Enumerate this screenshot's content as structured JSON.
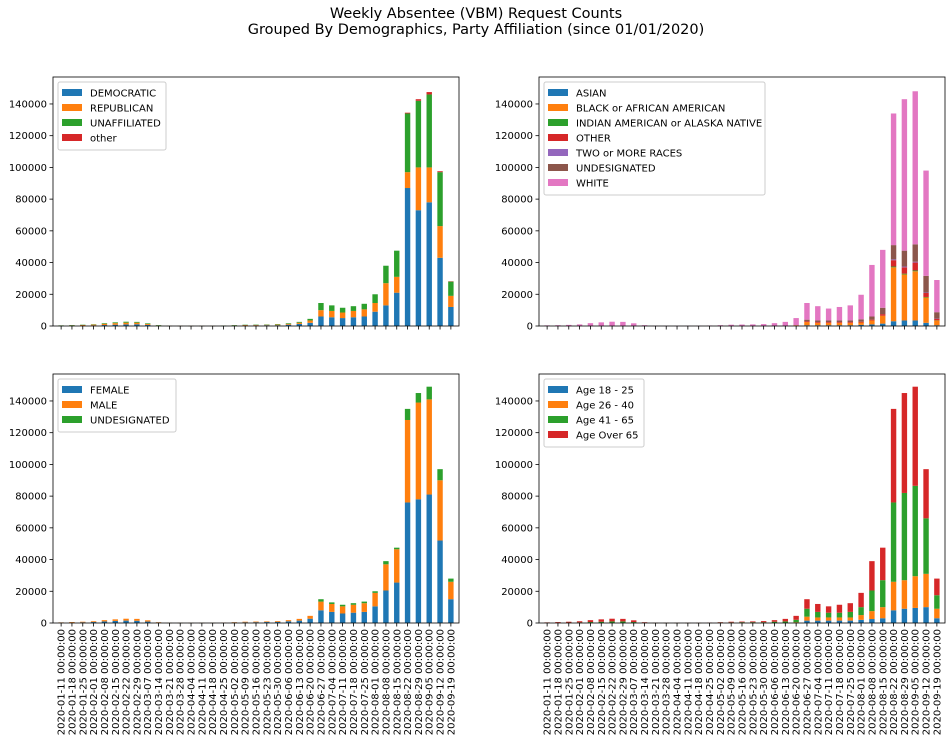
{
  "figure": {
    "title_line1": "Weekly Absentee (VBM) Request Counts",
    "title_line2": "Grouped By Demographics, Party Affiliation (since 01/01/2020)"
  },
  "chart_data": [
    {
      "type": "bar",
      "stacked": true,
      "legend_position": "upper-left",
      "ylim": [
        0,
        157000
      ],
      "yticks": [
        0,
        20000,
        40000,
        60000,
        80000,
        100000,
        120000,
        140000
      ],
      "show_xticklabels": false,
      "categories": [
        "2020-01-11 00:00:00",
        "2020-01-18 00:00:00",
        "2020-01-25 00:00:00",
        "2020-02-01 00:00:00",
        "2020-02-08 00:00:00",
        "2020-02-15 00:00:00",
        "2020-02-22 00:00:00",
        "2020-02-29 00:00:00",
        "2020-03-07 00:00:00",
        "2020-03-14 00:00:00",
        "2020-03-21 00:00:00",
        "2020-03-28 00:00:00",
        "2020-04-04 00:00:00",
        "2020-04-11 00:00:00",
        "2020-04-18 00:00:00",
        "2020-04-25 00:00:00",
        "2020-05-02 00:00:00",
        "2020-05-09 00:00:00",
        "2020-05-16 00:00:00",
        "2020-05-23 00:00:00",
        "2020-05-30 00:00:00",
        "2020-06-06 00:00:00",
        "2020-06-13 00:00:00",
        "2020-06-20 00:00:00",
        "2020-06-27 00:00:00",
        "2020-07-04 00:00:00",
        "2020-07-11 00:00:00",
        "2020-07-18 00:00:00",
        "2020-07-25 00:00:00",
        "2020-08-01 00:00:00",
        "2020-08-08 00:00:00",
        "2020-08-15 00:00:00",
        "2020-08-22 00:00:00",
        "2020-08-29 00:00:00",
        "2020-09-05 00:00:00",
        "2020-09-12 00:00:00",
        "2020-09-19 00:00:00"
      ],
      "series": [
        {
          "name": "DEMOCRATIC",
          "color": "#1f77b4",
          "values": [
            100,
            200,
            300,
            400,
            600,
            800,
            1000,
            1100,
            700,
            200,
            50,
            50,
            50,
            50,
            50,
            50,
            200,
            300,
            400,
            500,
            500,
            800,
            1300,
            2000,
            6000,
            5500,
            5000,
            5500,
            6000,
            9000,
            13000,
            21000,
            87000,
            73000,
            78000,
            43000,
            12000
          ]
        },
        {
          "name": "REPUBLICAN",
          "color": "#ff7f0e",
          "values": [
            200,
            250,
            350,
            500,
            800,
            1000,
            1100,
            1000,
            600,
            200,
            50,
            50,
            50,
            50,
            50,
            100,
            200,
            300,
            300,
            300,
            400,
            600,
            800,
            1500,
            4000,
            4000,
            3500,
            4000,
            4500,
            5500,
            14000,
            10000,
            10000,
            27000,
            22000,
            20000,
            7000
          ]
        },
        {
          "name": "UNAFFILIATED",
          "color": "#2ca02c",
          "values": [
            100,
            150,
            150,
            200,
            400,
            500,
            600,
            500,
            400,
            100,
            0,
            0,
            0,
            0,
            0,
            100,
            100,
            200,
            200,
            200,
            300,
            400,
            500,
            1000,
            4500,
            3500,
            3000,
            3000,
            3500,
            5500,
            11000,
            16500,
            37000,
            42000,
            46000,
            34000,
            9000
          ]
        },
        {
          "name": "other",
          "color": "#d62728",
          "values": [
            0,
            0,
            0,
            0,
            0,
            0,
            0,
            0,
            0,
            0,
            0,
            0,
            0,
            0,
            0,
            0,
            0,
            0,
            0,
            0,
            0,
            0,
            0,
            0,
            0,
            0,
            0,
            0,
            0,
            0,
            0,
            0,
            500,
            1000,
            1500,
            600,
            200
          ]
        }
      ]
    },
    {
      "type": "bar",
      "stacked": true,
      "legend_position": "upper-left",
      "ylim": [
        0,
        157000
      ],
      "yticks": [
        0,
        20000,
        40000,
        60000,
        80000,
        100000,
        120000,
        140000
      ],
      "show_xticklabels": false,
      "categories": [
        "2020-01-11 00:00:00",
        "2020-01-18 00:00:00",
        "2020-01-25 00:00:00",
        "2020-02-01 00:00:00",
        "2020-02-08 00:00:00",
        "2020-02-15 00:00:00",
        "2020-02-22 00:00:00",
        "2020-02-29 00:00:00",
        "2020-03-07 00:00:00",
        "2020-03-14 00:00:00",
        "2020-03-21 00:00:00",
        "2020-03-28 00:00:00",
        "2020-04-04 00:00:00",
        "2020-04-11 00:00:00",
        "2020-04-18 00:00:00",
        "2020-04-25 00:00:00",
        "2020-05-02 00:00:00",
        "2020-05-09 00:00:00",
        "2020-05-16 00:00:00",
        "2020-05-23 00:00:00",
        "2020-05-30 00:00:00",
        "2020-06-06 00:00:00",
        "2020-06-13 00:00:00",
        "2020-06-20 00:00:00",
        "2020-06-27 00:00:00",
        "2020-07-04 00:00:00",
        "2020-07-11 00:00:00",
        "2020-07-18 00:00:00",
        "2020-07-25 00:00:00",
        "2020-08-01 00:00:00",
        "2020-08-08 00:00:00",
        "2020-08-15 00:00:00",
        "2020-08-22 00:00:00",
        "2020-08-29 00:00:00",
        "2020-09-05 00:00:00",
        "2020-09-12 00:00:00",
        "2020-09-19 00:00:00"
      ],
      "series": [
        {
          "name": "ASIAN",
          "color": "#1f77b4",
          "values": [
            0,
            0,
            0,
            0,
            0,
            0,
            0,
            0,
            0,
            0,
            0,
            0,
            0,
            0,
            0,
            0,
            0,
            0,
            0,
            0,
            0,
            0,
            0,
            0,
            500,
            500,
            500,
            500,
            500,
            700,
            1000,
            1500,
            3000,
            3500,
            3500,
            2000,
            500
          ]
        },
        {
          "name": "BLACK or AFRICAN AMERICAN",
          "color": "#ff7f0e",
          "values": [
            0,
            0,
            0,
            0,
            0,
            0,
            0,
            0,
            0,
            0,
            0,
            0,
            0,
            0,
            0,
            0,
            0,
            0,
            0,
            0,
            0,
            0,
            0,
            500,
            2000,
            1500,
            1500,
            1500,
            1500,
            1500,
            2500,
            5000,
            34000,
            29000,
            31000,
            16000,
            3000
          ]
        },
        {
          "name": "INDIAN AMERICAN or ALASKA NATIVE",
          "color": "#2ca02c",
          "values": [
            0,
            0,
            0,
            0,
            0,
            0,
            0,
            0,
            0,
            0,
            0,
            0,
            0,
            0,
            0,
            0,
            0,
            0,
            0,
            0,
            0,
            0,
            0,
            0,
            0,
            0,
            0,
            0,
            0,
            0,
            0,
            0,
            500,
            500,
            500,
            300,
            100
          ]
        },
        {
          "name": "OTHER",
          "color": "#d62728",
          "values": [
            0,
            0,
            0,
            0,
            0,
            0,
            0,
            0,
            0,
            0,
            0,
            0,
            0,
            0,
            0,
            0,
            0,
            0,
            0,
            0,
            0,
            0,
            0,
            0,
            500,
            500,
            500,
            500,
            500,
            500,
            500,
            1000,
            4000,
            4000,
            5000,
            2500,
            1000
          ]
        },
        {
          "name": "TWO or MORE RACES",
          "color": "#9467bd",
          "values": [
            0,
            0,
            0,
            0,
            0,
            0,
            0,
            0,
            0,
            0,
            0,
            0,
            0,
            0,
            0,
            0,
            0,
            0,
            0,
            0,
            0,
            0,
            0,
            0,
            0,
            0,
            0,
            0,
            0,
            0,
            0,
            0,
            500,
            500,
            500,
            300,
            100
          ]
        },
        {
          "name": "UNDESIGNATED",
          "color": "#8c564b",
          "values": [
            0,
            0,
            0,
            0,
            0,
            0,
            0,
            0,
            0,
            0,
            0,
            0,
            0,
            0,
            0,
            0,
            0,
            0,
            0,
            0,
            0,
            0,
            0,
            0,
            1000,
            1000,
            1000,
            1000,
            1000,
            1500,
            2000,
            4000,
            9000,
            10000,
            11000,
            10500,
            4000
          ]
        },
        {
          "name": "WHITE",
          "color": "#e377c2",
          "values": [
            400,
            500,
            700,
            1000,
            1800,
            2300,
            2700,
            2600,
            1700,
            500,
            100,
            100,
            100,
            100,
            100,
            300,
            500,
            800,
            900,
            1000,
            1200,
            1800,
            2600,
            4500,
            10500,
            9000,
            7500,
            8500,
            9500,
            15500,
            32500,
            36500,
            83000,
            95500,
            96500,
            66400,
            20300
          ]
        }
      ]
    },
    {
      "type": "bar",
      "stacked": true,
      "legend_position": "upper-left",
      "ylim": [
        0,
        157000
      ],
      "yticks": [
        0,
        20000,
        40000,
        60000,
        80000,
        100000,
        120000,
        140000
      ],
      "show_xticklabels": true,
      "categories": [
        "2020-01-11 00:00:00",
        "2020-01-18 00:00:00",
        "2020-01-25 00:00:00",
        "2020-02-01 00:00:00",
        "2020-02-08 00:00:00",
        "2020-02-15 00:00:00",
        "2020-02-22 00:00:00",
        "2020-02-29 00:00:00",
        "2020-03-07 00:00:00",
        "2020-03-14 00:00:00",
        "2020-03-21 00:00:00",
        "2020-03-28 00:00:00",
        "2020-04-04 00:00:00",
        "2020-04-11 00:00:00",
        "2020-04-18 00:00:00",
        "2020-04-25 00:00:00",
        "2020-05-02 00:00:00",
        "2020-05-09 00:00:00",
        "2020-05-16 00:00:00",
        "2020-05-23 00:00:00",
        "2020-05-30 00:00:00",
        "2020-06-06 00:00:00",
        "2020-06-13 00:00:00",
        "2020-06-20 00:00:00",
        "2020-06-27 00:00:00",
        "2020-07-04 00:00:00",
        "2020-07-11 00:00:00",
        "2020-07-18 00:00:00",
        "2020-07-25 00:00:00",
        "2020-08-01 00:00:00",
        "2020-08-08 00:00:00",
        "2020-08-15 00:00:00",
        "2020-08-22 00:00:00",
        "2020-08-29 00:00:00",
        "2020-09-05 00:00:00",
        "2020-09-12 00:00:00",
        "2020-09-19 00:00:00"
      ],
      "series": [
        {
          "name": "FEMALE",
          "color": "#1f77b4",
          "values": [
            250,
            300,
            450,
            600,
            1000,
            1300,
            1500,
            1400,
            900,
            300,
            50,
            50,
            50,
            50,
            50,
            150,
            300,
            450,
            500,
            600,
            700,
            1100,
            1500,
            2700,
            8000,
            7000,
            6000,
            6500,
            7000,
            10500,
            20500,
            25500,
            76000,
            78000,
            81000,
            52000,
            15000
          ]
        },
        {
          "name": "MALE",
          "color": "#ff7f0e",
          "values": [
            150,
            300,
            350,
            500,
            800,
            1000,
            1200,
            1200,
            800,
            200,
            50,
            50,
            50,
            50,
            50,
            100,
            200,
            350,
            400,
            400,
            500,
            700,
            1100,
            1800,
            5500,
            5000,
            4500,
            5000,
            5500,
            8500,
            16500,
            21000,
            52000,
            61000,
            60000,
            38000,
            11000
          ]
        },
        {
          "name": "UNDESIGNATED",
          "color": "#2ca02c",
          "values": [
            0,
            0,
            0,
            0,
            0,
            0,
            0,
            0,
            0,
            0,
            0,
            0,
            0,
            0,
            0,
            0,
            0,
            0,
            0,
            0,
            0,
            0,
            0,
            0,
            1500,
            1000,
            1000,
            1000,
            1000,
            1000,
            2000,
            1000,
            7000,
            6000,
            8000,
            7000,
            2000
          ]
        }
      ]
    },
    {
      "type": "bar",
      "stacked": true,
      "legend_position": "upper-left",
      "ylim": [
        0,
        157000
      ],
      "yticks": [
        0,
        20000,
        40000,
        60000,
        80000,
        100000,
        120000,
        140000
      ],
      "show_xticklabels": true,
      "categories": [
        "2020-01-11 00:00:00",
        "2020-01-18 00:00:00",
        "2020-01-25 00:00:00",
        "2020-02-01 00:00:00",
        "2020-02-08 00:00:00",
        "2020-02-15 00:00:00",
        "2020-02-22 00:00:00",
        "2020-02-29 00:00:00",
        "2020-03-07 00:00:00",
        "2020-03-14 00:00:00",
        "2020-03-21 00:00:00",
        "2020-03-28 00:00:00",
        "2020-04-04 00:00:00",
        "2020-04-11 00:00:00",
        "2020-04-18 00:00:00",
        "2020-04-25 00:00:00",
        "2020-05-02 00:00:00",
        "2020-05-09 00:00:00",
        "2020-05-16 00:00:00",
        "2020-05-23 00:00:00",
        "2020-05-30 00:00:00",
        "2020-06-06 00:00:00",
        "2020-06-13 00:00:00",
        "2020-06-20 00:00:00",
        "2020-06-27 00:00:00",
        "2020-07-04 00:00:00",
        "2020-07-11 00:00:00",
        "2020-07-18 00:00:00",
        "2020-07-25 00:00:00",
        "2020-08-01 00:00:00",
        "2020-08-08 00:00:00",
        "2020-08-15 00:00:00",
        "2020-08-22 00:00:00",
        "2020-08-29 00:00:00",
        "2020-09-05 00:00:00",
        "2020-09-12 00:00:00",
        "2020-09-19 00:00:00"
      ],
      "series": [
        {
          "name": "Age 18 - 25",
          "color": "#1f77b4",
          "values": [
            0,
            0,
            0,
            0,
            0,
            0,
            0,
            0,
            0,
            0,
            0,
            0,
            0,
            0,
            0,
            0,
            0,
            0,
            0,
            0,
            0,
            0,
            0,
            0,
            1500,
            1500,
            1500,
            1500,
            1500,
            2000,
            2500,
            3000,
            8000,
            9000,
            9500,
            10000,
            3000
          ]
        },
        {
          "name": "Age 26 - 40",
          "color": "#ff7f0e",
          "values": [
            0,
            0,
            0,
            0,
            0,
            0,
            0,
            0,
            0,
            0,
            0,
            0,
            0,
            0,
            0,
            0,
            0,
            0,
            0,
            0,
            0,
            0,
            0,
            500,
            2500,
            2000,
            2000,
            2000,
            2000,
            3000,
            5000,
            7000,
            18000,
            18000,
            20000,
            21000,
            6000
          ]
        },
        {
          "name": "Age 41 - 65",
          "color": "#2ca02c",
          "values": [
            200,
            200,
            300,
            400,
            600,
            800,
            1000,
            1000,
            600,
            200,
            50,
            50,
            50,
            50,
            50,
            100,
            300,
            400,
            500,
            500,
            500,
            800,
            1000,
            1500,
            5000,
            3500,
            3000,
            3000,
            3500,
            5000,
            13000,
            17000,
            50000,
            55000,
            57000,
            35000,
            8500
          ]
        },
        {
          "name": "Age Over 65",
          "color": "#d62728",
          "values": [
            200,
            400,
            500,
            700,
            1200,
            1500,
            1700,
            1600,
            1100,
            300,
            50,
            50,
            50,
            50,
            50,
            150,
            200,
            400,
            400,
            500,
            700,
            1000,
            1600,
            2500,
            6000,
            5000,
            4000,
            5000,
            5500,
            9000,
            18500,
            20500,
            59000,
            63000,
            62500,
            31000,
            10500
          ]
        }
      ]
    }
  ]
}
